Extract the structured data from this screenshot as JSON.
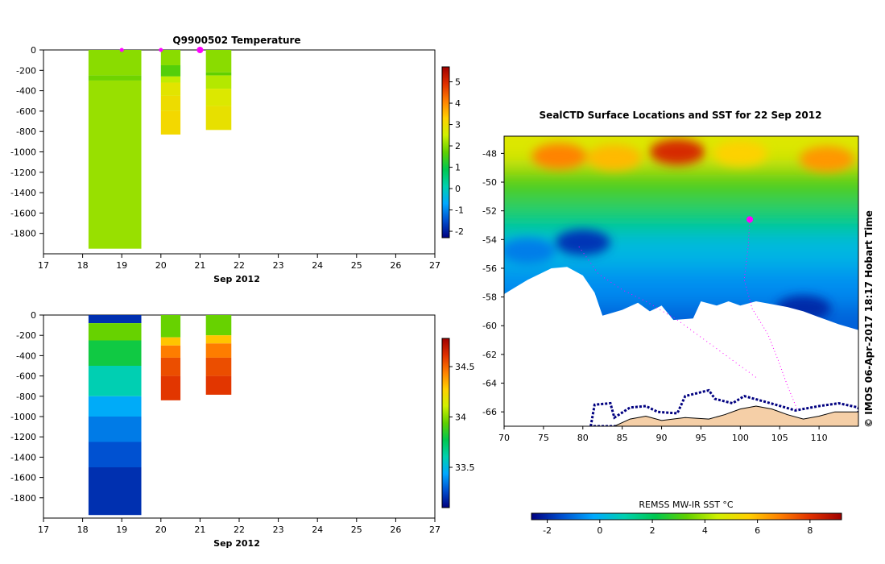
{
  "colors": {
    "background": "#ffffff",
    "axis": "#000000",
    "marker": "#ff00ff",
    "land": "#f5cfa7",
    "ice": "#ffffff"
  },
  "chart_data": [
    {
      "id": "temperature",
      "type": "heatmap",
      "title": "Q9900502  Temperature",
      "xlabel": "Sep 2012",
      "ylabel": "",
      "xlim": [
        17,
        27
      ],
      "ylim": [
        -2000,
        0
      ],
      "x_ticks": [
        17,
        18,
        19,
        20,
        21,
        22,
        23,
        24,
        25,
        26,
        27
      ],
      "y_ticks": [
        0,
        -200,
        -400,
        -600,
        -800,
        -1000,
        -1200,
        -1400,
        -1600,
        -1800
      ],
      "colorbar": {
        "range": [
          -2.3,
          5.7
        ],
        "ticks": [
          5,
          4,
          3,
          2,
          1,
          0,
          -1,
          -2
        ],
        "stops": [
          "#000080",
          "#0050d0",
          "#00a8ff",
          "#00d0b0",
          "#00c850",
          "#60d000",
          "#d0f000",
          "#ffd000",
          "#ff8000",
          "#e03000",
          "#a00000"
        ]
      },
      "markers_x": [
        19.0,
        20.0,
        21.0
      ],
      "profiles": [
        {
          "x0": 18.15,
          "x1": 19.5,
          "segments": [
            {
              "top": 0,
              "bottom": -250,
              "value": 2.0
            },
            {
              "top": -250,
              "bottom": -300,
              "value": 1.8
            },
            {
              "top": -300,
              "bottom": -1950,
              "value": 2.1
            }
          ]
        },
        {
          "x0": 20.0,
          "x1": 20.5,
          "segments": [
            {
              "top": 0,
              "bottom": -150,
              "value": 2.0
            },
            {
              "top": -150,
              "bottom": -260,
              "value": 1.6
            },
            {
              "top": -260,
              "bottom": -320,
              "value": 2.4
            },
            {
              "top": -320,
              "bottom": -450,
              "value": 2.8
            },
            {
              "top": -450,
              "bottom": -600,
              "value": 3.0
            },
            {
              "top": -600,
              "bottom": -830,
              "value": 3.1
            }
          ]
        },
        {
          "x0": 21.15,
          "x1": 21.8,
          "segments": [
            {
              "top": 0,
              "bottom": -220,
              "value": 2.0
            },
            {
              "top": -220,
              "bottom": -250,
              "value": 1.7
            },
            {
              "top": -250,
              "bottom": -380,
              "value": 2.3
            },
            {
              "top": -380,
              "bottom": -550,
              "value": 2.7
            },
            {
              "top": -550,
              "bottom": -785,
              "value": 2.9
            }
          ]
        }
      ]
    },
    {
      "id": "salinity",
      "type": "heatmap",
      "title": "",
      "xlabel": "Sep 2012",
      "ylabel": "",
      "xlim": [
        17,
        27
      ],
      "ylim": [
        -2000,
        0
      ],
      "x_ticks": [
        17,
        18,
        19,
        20,
        21,
        22,
        23,
        24,
        25,
        26,
        27
      ],
      "y_ticks": [
        0,
        -200,
        -400,
        -600,
        -800,
        -1000,
        -1200,
        -1400,
        -1600,
        -1800
      ],
      "colorbar": {
        "range": [
          33.1,
          34.78
        ],
        "ticks": [
          34.5,
          34,
          33.5
        ],
        "stops": [
          "#000080",
          "#0050d0",
          "#00a8ff",
          "#00d0b0",
          "#00c850",
          "#60d000",
          "#d0f000",
          "#ffd000",
          "#ff8000",
          "#e03000",
          "#a00000"
        ]
      },
      "profiles": [
        {
          "x0": 18.15,
          "x1": 19.5,
          "segments": [
            {
              "top": 0,
              "bottom": -80,
              "value": 33.2
            },
            {
              "top": -80,
              "bottom": -250,
              "value": 33.95
            },
            {
              "top": -250,
              "bottom": -500,
              "value": 33.8
            },
            {
              "top": -500,
              "bottom": -800,
              "value": 33.6
            },
            {
              "top": -800,
              "bottom": -1000,
              "value": 33.45
            },
            {
              "top": -1000,
              "bottom": -1250,
              "value": 33.35
            },
            {
              "top": -1250,
              "bottom": -1500,
              "value": 33.27
            },
            {
              "top": -1500,
              "bottom": -1970,
              "value": 33.2
            }
          ]
        },
        {
          "x0": 20.0,
          "x1": 20.5,
          "segments": [
            {
              "top": 0,
              "bottom": -220,
              "value": 33.95
            },
            {
              "top": -220,
              "bottom": -300,
              "value": 34.3
            },
            {
              "top": -300,
              "bottom": -420,
              "value": 34.45
            },
            {
              "top": -420,
              "bottom": -600,
              "value": 34.55
            },
            {
              "top": -600,
              "bottom": -840,
              "value": 34.6
            }
          ]
        },
        {
          "x0": 21.15,
          "x1": 21.8,
          "segments": [
            {
              "top": 0,
              "bottom": -200,
              "value": 33.95
            },
            {
              "top": -200,
              "bottom": -280,
              "value": 34.3
            },
            {
              "top": -280,
              "bottom": -420,
              "value": 34.45
            },
            {
              "top": -420,
              "bottom": -600,
              "value": 34.55
            },
            {
              "top": -600,
              "bottom": -785,
              "value": 34.6
            }
          ]
        }
      ]
    },
    {
      "id": "sst-map",
      "type": "heatmap",
      "title": "SealCTD Surface Locations and SST for 22 Sep 2012",
      "xlabel": "",
      "ylabel": "",
      "xlim": [
        70,
        115
      ],
      "ylim": [
        -67,
        -46.8
      ],
      "x_ticks": [
        70,
        75,
        80,
        85,
        90,
        95,
        100,
        105,
        110
      ],
      "y_ticks": [
        -48,
        -50,
        -52,
        -54,
        -56,
        -58,
        -60,
        -62,
        -64,
        -66
      ],
      "colorbar": {
        "label": "REMSS MW-IR SST °C",
        "range": [
          -2.6,
          9.2
        ],
        "ticks": [
          -2,
          0,
          2,
          4,
          6,
          8
        ],
        "stops": [
          "#000080",
          "#0050d0",
          "#00a8ff",
          "#00d0b0",
          "#00c850",
          "#60d000",
          "#d0f000",
          "#ffd000",
          "#ff8000",
          "#e03000",
          "#a00000"
        ]
      },
      "side_label": "©  IMOS 06-Apr-2017 18:17 Hobart Time",
      "seal_position": {
        "lon": 101.2,
        "lat": -52.6
      },
      "sst_bands": [
        {
          "lat_top": -46.8,
          "lat_bottom": -49.0,
          "value": 4.8
        },
        {
          "lat_top": -49.0,
          "lat_bottom": -51.5,
          "value": 3.0
        },
        {
          "lat_top": -51.5,
          "lat_bottom": -53.5,
          "value": 1.6
        },
        {
          "lat_top": -53.5,
          "lat_bottom": -56.0,
          "value": 0.2
        },
        {
          "lat_top": -56.0,
          "lat_bottom": -58.5,
          "value": -0.6
        },
        {
          "lat_top": -58.5,
          "lat_bottom": -60.5,
          "value": -1.2
        }
      ],
      "warm_patches": [
        {
          "lon": 92,
          "lat": -47.9,
          "value": 8.2
        },
        {
          "lon": 77,
          "lat": -48.2,
          "value": 6.8
        },
        {
          "lon": 111,
          "lat": -48.4,
          "value": 6.5
        },
        {
          "lon": 100,
          "lat": -48.0,
          "value": 5.6
        },
        {
          "lon": 84,
          "lat": -48.3,
          "value": 6.0
        }
      ],
      "cold_patches": [
        {
          "lon": 80,
          "lat": -54.2,
          "value": -1.8
        },
        {
          "lon": 108,
          "lat": -58.8,
          "value": -2.0
        },
        {
          "lon": 73,
          "lat": -54.8,
          "value": -0.8
        }
      ],
      "ice_edge": [
        {
          "lon": 70,
          "lat": -57.8
        },
        {
          "lon": 73,
          "lat": -56.8
        },
        {
          "lon": 76,
          "lat": -56.0
        },
        {
          "lon": 78,
          "lat": -55.9
        },
        {
          "lon": 80,
          "lat": -56.5
        },
        {
          "lon": 81.5,
          "lat": -57.7
        },
        {
          "lon": 82.5,
          "lat": -59.3
        },
        {
          "lon": 85,
          "lat": -58.9
        },
        {
          "lon": 87,
          "lat": -58.4
        },
        {
          "lon": 88.5,
          "lat": -59.0
        },
        {
          "lon": 90,
          "lat": -58.6
        },
        {
          "lon": 91.5,
          "lat": -59.6
        },
        {
          "lon": 94,
          "lat": -59.5
        },
        {
          "lon": 95,
          "lat": -58.3
        },
        {
          "lon": 97,
          "lat": -58.6
        },
        {
          "lon": 98.5,
          "lat": -58.3
        },
        {
          "lon": 100,
          "lat": -58.6
        },
        {
          "lon": 102,
          "lat": -58.3
        },
        {
          "lon": 104,
          "lat": -58.5
        },
        {
          "lon": 106,
          "lat": -58.7
        },
        {
          "lon": 108,
          "lat": -59.0
        },
        {
          "lon": 110,
          "lat": -59.4
        },
        {
          "lon": 112.5,
          "lat": -59.9
        },
        {
          "lon": 115,
          "lat": -60.3
        }
      ],
      "coast": [
        {
          "lon": 70,
          "lat": -67.0
        },
        {
          "lon": 84,
          "lat": -67.0
        },
        {
          "lon": 86,
          "lat": -66.5
        },
        {
          "lon": 88,
          "lat": -66.3
        },
        {
          "lon": 90,
          "lat": -66.6
        },
        {
          "lon": 93,
          "lat": -66.4
        },
        {
          "lon": 96,
          "lat": -66.5
        },
        {
          "lon": 98,
          "lat": -66.2
        },
        {
          "lon": 100,
          "lat": -65.8
        },
        {
          "lon": 102,
          "lat": -65.6
        },
        {
          "lon": 104,
          "lat": -65.8
        },
        {
          "lon": 106,
          "lat": -66.2
        },
        {
          "lon": 108,
          "lat": -66.5
        },
        {
          "lon": 110,
          "lat": -66.3
        },
        {
          "lon": 112,
          "lat": -66.0
        },
        {
          "lon": 115,
          "lat": -66.0
        },
        {
          "lon": 115,
          "lat": -67.0
        }
      ],
      "fast_ice": [
        {
          "lon": 81,
          "lat": -67.0
        },
        {
          "lon": 81.5,
          "lat": -65.5
        },
        {
          "lon": 83.5,
          "lat": -65.4
        },
        {
          "lon": 84,
          "lat": -66.4
        },
        {
          "lon": 86,
          "lat": -65.7
        },
        {
          "lon": 88,
          "lat": -65.6
        },
        {
          "lon": 89.5,
          "lat": -66.0
        },
        {
          "lon": 92,
          "lat": -66.1
        },
        {
          "lon": 93,
          "lat": -64.9
        },
        {
          "lon": 96,
          "lat": -64.5
        },
        {
          "lon": 96.8,
          "lat": -65.1
        },
        {
          "lon": 99,
          "lat": -65.4
        },
        {
          "lon": 100.5,
          "lat": -64.9
        },
        {
          "lon": 102.5,
          "lat": -65.2
        },
        {
          "lon": 104.5,
          "lat": -65.5
        },
        {
          "lon": 107,
          "lat": -65.9
        },
        {
          "lon": 110,
          "lat": -65.6
        },
        {
          "lon": 112.5,
          "lat": -65.4
        },
        {
          "lon": 115,
          "lat": -65.7
        },
        {
          "lon": 115,
          "lat": -67.0
        }
      ],
      "seal_track": [
        {
          "lon": 101.2,
          "lat": -52.6
        },
        {
          "lon": 101.0,
          "lat": -54.5
        },
        {
          "lon": 100.5,
          "lat": -56.8
        },
        {
          "lon": 101.5,
          "lat": -58.8
        },
        {
          "lon": 103.5,
          "lat": -60.6
        },
        {
          "lon": 104.8,
          "lat": -62.4
        },
        {
          "lon": 106.0,
          "lat": -64.2
        },
        {
          "lon": 107.2,
          "lat": -65.8
        }
      ],
      "seal_track_west": [
        {
          "lon": 79.5,
          "lat": -54.5
        },
        {
          "lon": 82,
          "lat": -56.4
        },
        {
          "lon": 85,
          "lat": -57.5
        },
        {
          "lon": 88,
          "lat": -58.3
        },
        {
          "lon": 92,
          "lat": -59.6
        },
        {
          "lon": 95,
          "lat": -60.8
        },
        {
          "lon": 98,
          "lat": -62.0
        },
        {
          "lon": 102,
          "lat": -63.6
        }
      ]
    }
  ]
}
